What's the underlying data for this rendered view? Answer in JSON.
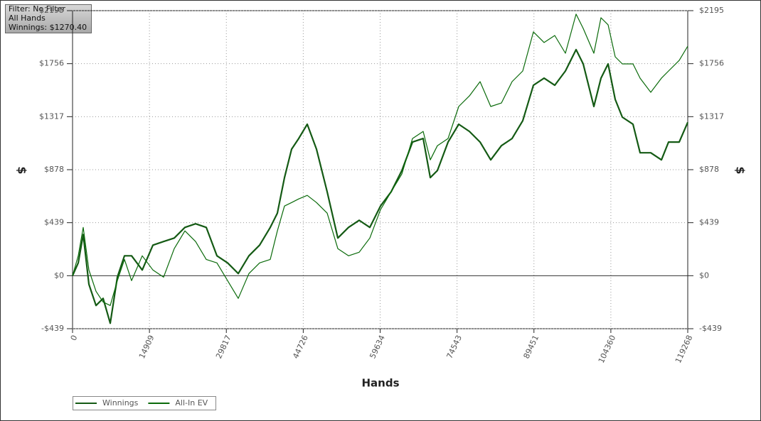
{
  "filter_box": {
    "lines": [
      "Filter: No Filter",
      "All Hands",
      "Winnings: $1270.40"
    ]
  },
  "chart_data": {
    "type": "line",
    "xlabel": "Hands",
    "ylabel": "$",
    "y2label": "$",
    "xlim": [
      0,
      119268
    ],
    "xticks": [
      0,
      14909,
      29817,
      44726,
      59634,
      74543,
      89451,
      104360,
      119268
    ],
    "ylim": [
      -439,
      2195
    ],
    "yticks": [
      {
        "value": -439,
        "label": "-$439"
      },
      {
        "value": 0,
        "label": "$0"
      },
      {
        "value": 439,
        "label": "$439"
      },
      {
        "value": 878,
        "label": "$878"
      },
      {
        "value": 1317,
        "label": "$1317"
      },
      {
        "value": 1756,
        "label": "$1756"
      },
      {
        "value": 2195,
        "label": "$2195"
      }
    ],
    "y2lim": [
      -439,
      2195
    ],
    "y2ticks": [
      {
        "value": -439,
        "label": "-$439"
      },
      {
        "value": 0,
        "label": "$0"
      },
      {
        "value": 439,
        "label": "$439"
      },
      {
        "value": 878,
        "label": "$878"
      },
      {
        "value": 1317,
        "label": "$1317"
      },
      {
        "value": 1756,
        "label": "$1756"
      },
      {
        "value": 2195,
        "label": "$2195"
      }
    ],
    "grid": true,
    "x": [
      0,
      1103,
      2068,
      3171,
      4550,
      5929,
      7308,
      8686,
      10065,
      11444,
      13512,
      15580,
      17648,
      19716,
      21784,
      23853,
      25921,
      27989,
      30057,
      32125,
      34194,
      36262,
      38330,
      39709,
      41088,
      42466,
      43845,
      45500,
      47292,
      49360,
      51428,
      53497,
      55565,
      57633,
      59701,
      61769,
      63838,
      65906,
      67974,
      69354,
      70732,
      72800,
      74869,
      76937,
      79005,
      81073,
      83141,
      85210,
      87278,
      89346,
      91414,
      93482,
      95551,
      97619,
      98998,
      101066,
      102445,
      103824,
      105202,
      106581,
      108649,
      110028,
      112096,
      114164,
      115543,
      117611,
      119268
    ],
    "series": [
      {
        "name": "Winnings",
        "color": "#145a14",
        "values": [
          0,
          106,
          341,
          -71,
          -247,
          -188,
          -394,
          -12,
          165,
          165,
          47,
          253,
          283,
          312,
          400,
          430,
          400,
          165,
          106,
          18,
          165,
          253,
          400,
          518,
          812,
          1048,
          1136,
          1254,
          1048,
          695,
          312,
          400,
          459,
          400,
          577,
          695,
          871,
          1107,
          1136,
          812,
          871,
          1107,
          1254,
          1195,
          1107,
          959,
          1077,
          1136,
          1283,
          1577,
          1636,
          1577,
          1695,
          1872,
          1754,
          1401,
          1636,
          1754,
          1460,
          1313,
          1254,
          1018,
          1018,
          959,
          1107,
          1107,
          1270
        ]
      },
      {
        "name": "All-In EV",
        "color": "#0a6a0a",
        "values": [
          0,
          165,
          400,
          47,
          -129,
          -218,
          -247,
          -41,
          135,
          -41,
          165,
          47,
          -12,
          224,
          371,
          283,
          135,
          106,
          -41,
          -188,
          18,
          106,
          135,
          371,
          577,
          606,
          636,
          665,
          606,
          518,
          224,
          165,
          194,
          312,
          547,
          695,
          842,
          1136,
          1195,
          959,
          1077,
          1136,
          1401,
          1489,
          1607,
          1401,
          1430,
          1607,
          1695,
          2019,
          1931,
          1989,
          1842,
          2166,
          2048,
          1842,
          2136,
          2078,
          1813,
          1754,
          1754,
          1636,
          1519,
          1636,
          1695,
          1783,
          1901
        ]
      }
    ]
  }
}
